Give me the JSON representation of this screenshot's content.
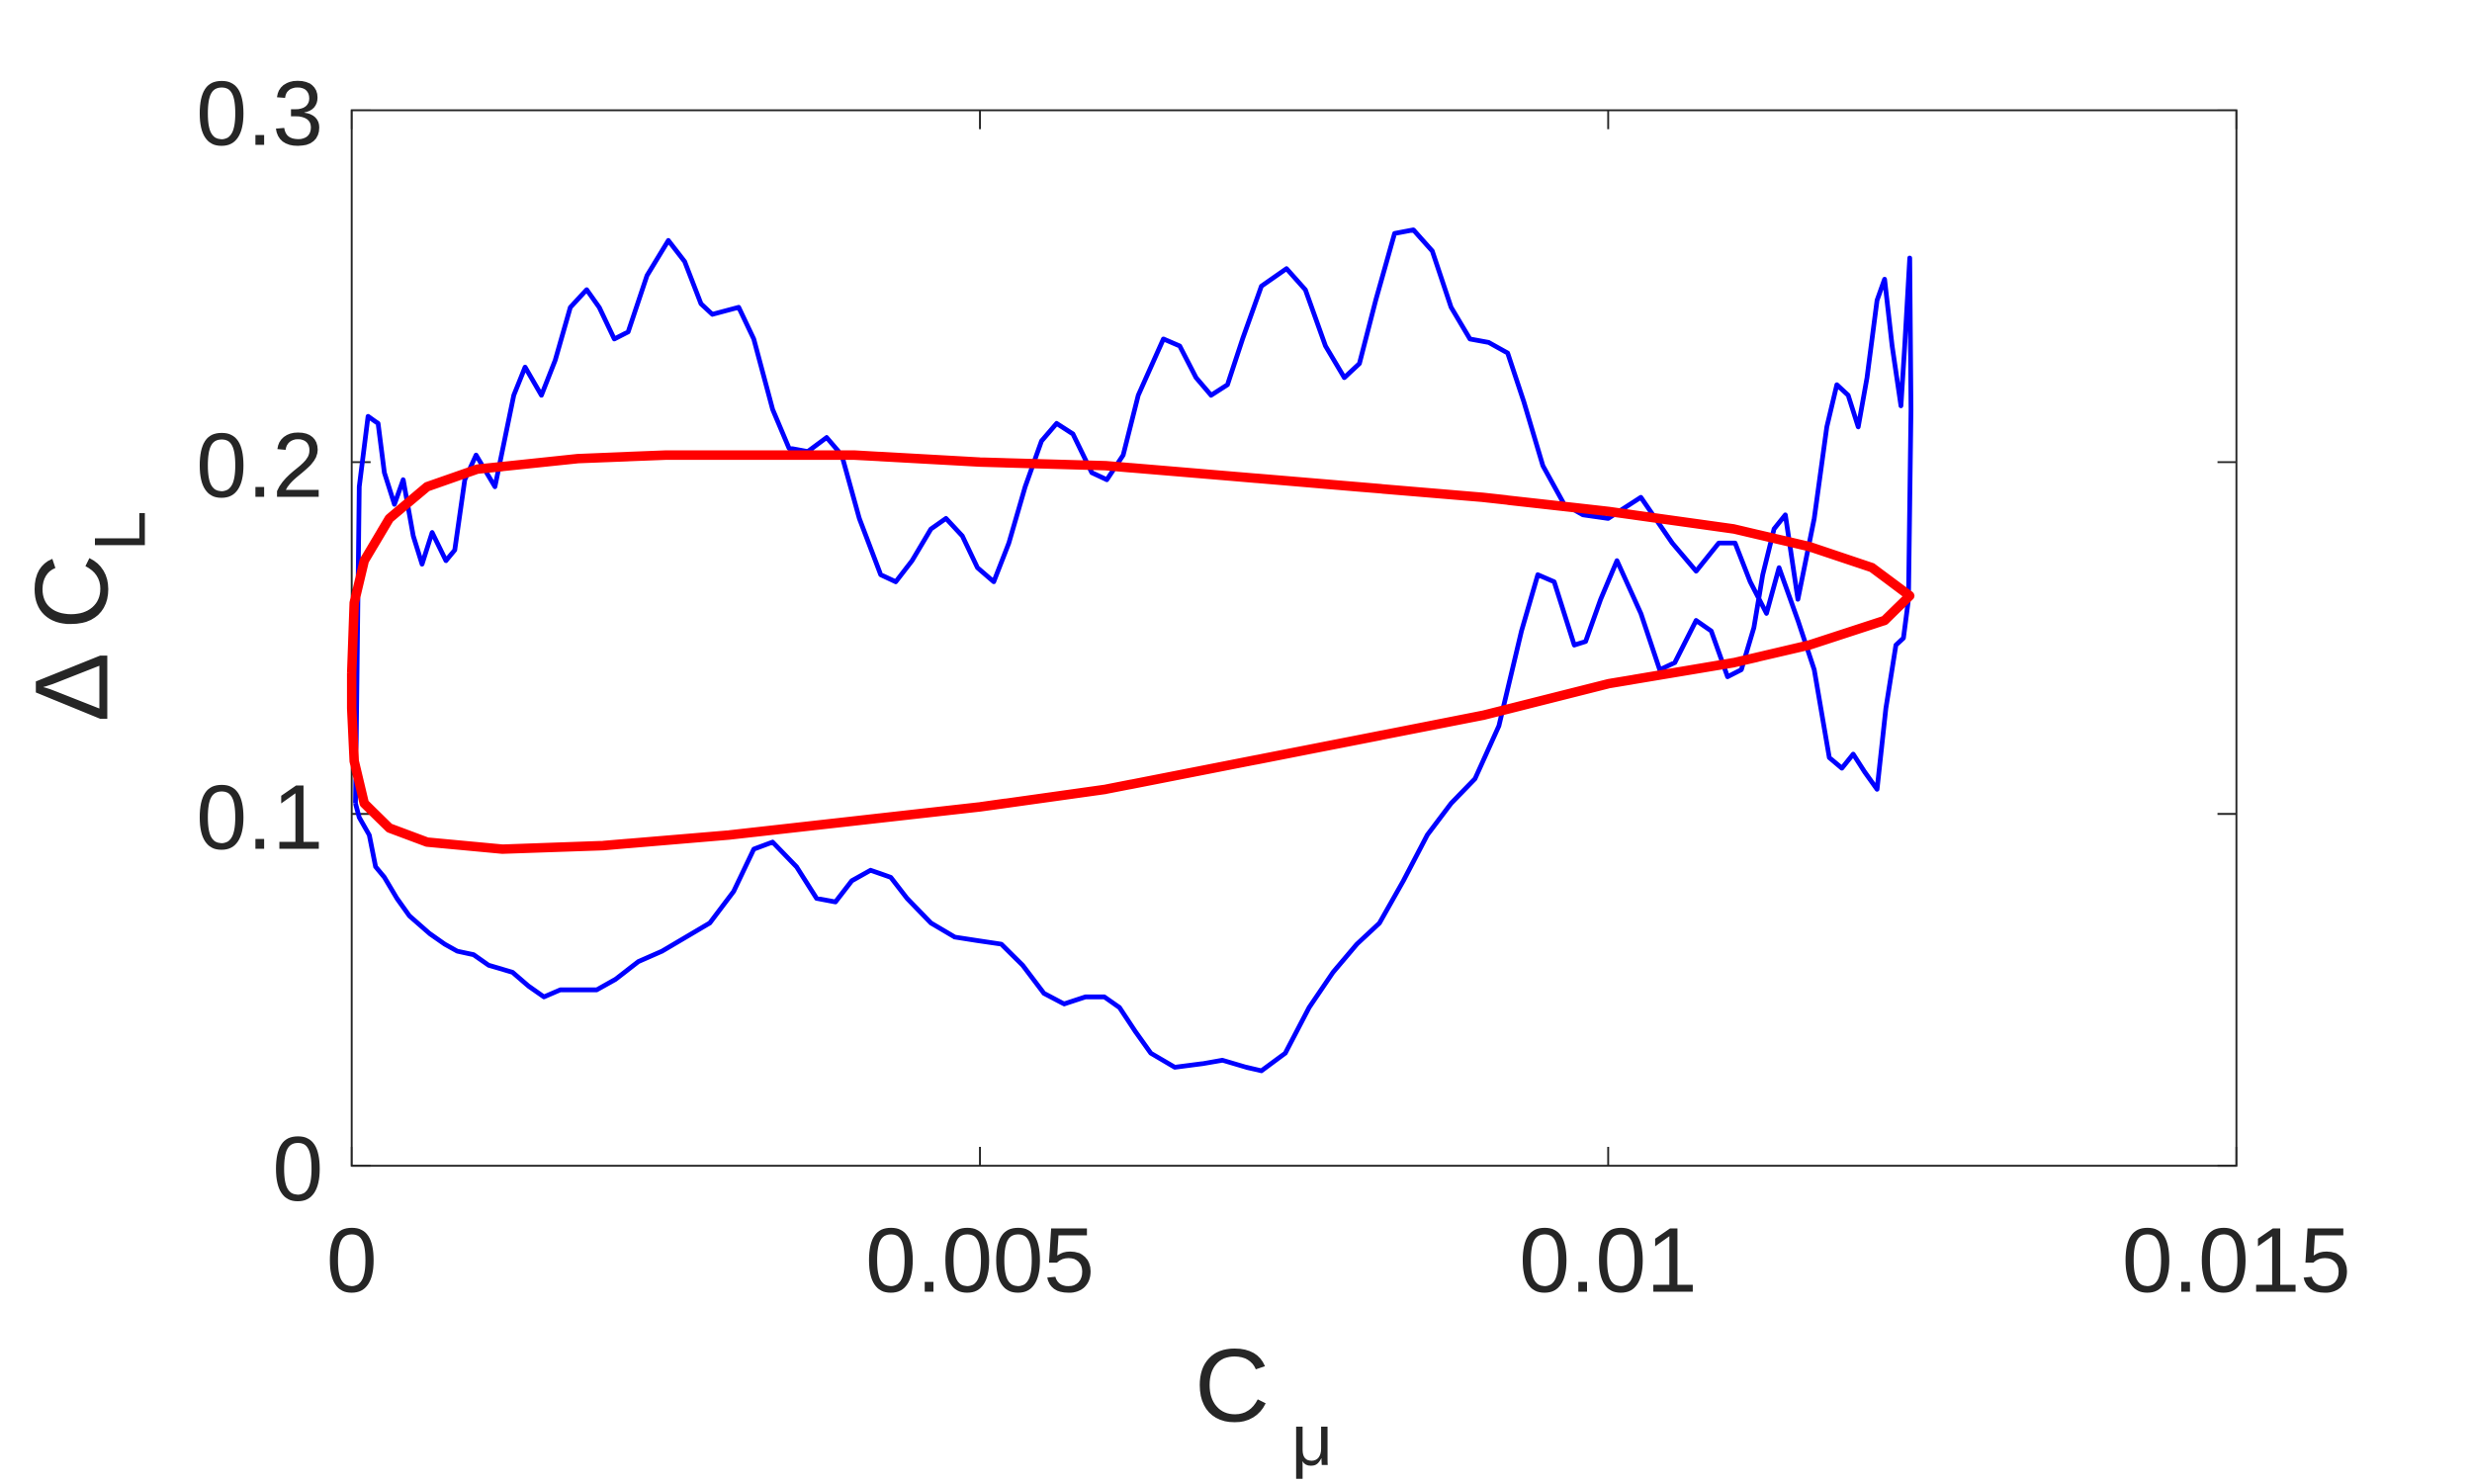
{
  "chart_data": {
    "type": "line",
    "xlabel": "C",
    "xlabel_sub": "μ",
    "ylabel": "Δ C",
    "ylabel_sub": "L",
    "xlim": [
      0,
      0.015
    ],
    "xticks": [
      0,
      0.005,
      0.01,
      0.015
    ],
    "ylim": [
      0,
      0.3
    ],
    "yticks": [
      0,
      0.1,
      0.2,
      0.3
    ],
    "grid": false,
    "series": [
      {
        "name": "blue",
        "color": "#0000ff",
        "width": 3,
        "x": [
          3e-05,
          6e-05,
          0.00013,
          0.00021,
          0.00026,
          0.00034,
          0.00041,
          0.00049,
          0.00056,
          0.00064,
          0.00075,
          0.00082,
          0.0009,
          0.00099,
          0.00114,
          0.00129,
          0.00138,
          0.00151,
          0.00162,
          0.00174,
          0.00187,
          0.00197,
          0.00209,
          0.0022,
          0.00235,
          0.00252,
          0.00265,
          0.00278,
          0.00287,
          0.00308,
          0.0032,
          0.00335,
          0.00348,
          0.00363,
          0.00378,
          0.0039,
          0.00404,
          0.00421,
          0.00433,
          0.00446,
          0.00461,
          0.00473,
          0.00486,
          0.00498,
          0.00511,
          0.00523,
          0.00536,
          0.00549,
          0.00561,
          0.00574,
          0.00589,
          0.00601,
          0.00614,
          0.00626,
          0.00646,
          0.00659,
          0.00672,
          0.00684,
          0.00697,
          0.00709,
          0.00724,
          0.00744,
          0.00759,
          0.00775,
          0.0079,
          0.00802,
          0.00815,
          0.0083,
          0.00845,
          0.0086,
          0.00875,
          0.0089,
          0.00905,
          0.0092,
          0.00933,
          0.00948,
          0.00965,
          0.0098,
          0.01,
          0.01026,
          0.01051,
          0.0107,
          0.01088,
          0.01101,
          0.01113,
          0.01126,
          0.01136,
          0.01151,
          0.01164,
          0.01176,
          0.01186,
          0.01195,
          0.01204,
          0.01214,
          0.01221,
          0.01229,
          0.01235,
          0.01239,
          0.01241,
          0.0124,
          0.01236,
          0.01233,
          0.01226,
          0.0122,
          0.01214,
          0.01206,
          0.01199,
          0.01191,
          0.01182,
          0.01174,
          0.01164,
          0.01151,
          0.01141,
          0.01132,
          0.01123,
          0.01116,
          0.01106,
          0.01095,
          0.01082,
          0.0107,
          0.01053,
          0.01041,
          0.01026,
          0.01007,
          0.00994,
          0.00982,
          0.00973,
          0.00957,
          0.00944,
          0.00931,
          0.00913,
          0.00894,
          0.00875,
          0.00856,
          0.00837,
          0.00818,
          0.008,
          0.00781,
          0.00762,
          0.00743,
          0.00724,
          0.00712,
          0.00693,
          0.00677,
          0.00655,
          0.00636,
          0.00624,
          0.00611,
          0.00599,
          0.00584,
          0.00567,
          0.00551,
          0.00534,
          0.00517,
          0.00498,
          0.0048,
          0.00461,
          0.00442,
          0.00429,
          0.00413,
          0.00398,
          0.00385,
          0.0037,
          0.00354,
          0.00335,
          0.0032,
          0.00304,
          0.00285,
          0.00266,
          0.00247,
          0.00228,
          0.0021,
          0.00195,
          0.00166,
          0.00153,
          0.00141,
          0.00128,
          0.00109,
          0.00097,
          0.00084,
          0.00074,
          0.00062,
          0.00046,
          0.00036,
          0.00026,
          0.00019,
          0.00014,
          6e-05,
          3e-05
        ],
        "values": [
          0.103,
          0.193,
          0.213,
          0.211,
          0.197,
          0.188,
          0.195,
          0.179,
          0.171,
          0.18,
          0.172,
          0.175,
          0.195,
          0.202,
          0.193,
          0.219,
          0.227,
          0.219,
          0.229,
          0.244,
          0.249,
          0.244,
          0.235,
          0.237,
          0.253,
          0.263,
          0.257,
          0.245,
          0.242,
          0.244,
          0.235,
          0.215,
          0.204,
          0.203,
          0.207,
          0.202,
          0.184,
          0.168,
          0.166,
          0.172,
          0.181,
          0.184,
          0.179,
          0.17,
          0.166,
          0.177,
          0.193,
          0.206,
          0.211,
          0.208,
          0.197,
          0.195,
          0.202,
          0.219,
          0.235,
          0.233,
          0.224,
          0.219,
          0.222,
          0.235,
          0.25,
          0.255,
          0.249,
          0.233,
          0.224,
          0.228,
          0.246,
          0.265,
          0.266,
          0.26,
          0.244,
          0.235,
          0.234,
          0.231,
          0.217,
          0.199,
          0.188,
          0.185,
          0.184,
          0.19,
          0.177,
          0.169,
          0.177,
          0.177,
          0.166,
          0.157,
          0.17,
          0.155,
          0.141,
          0.116,
          0.113,
          0.117,
          0.112,
          0.107,
          0.13,
          0.148,
          0.15,
          0.161,
          0.215,
          0.258,
          0.233,
          0.216,
          0.233,
          0.252,
          0.246,
          0.224,
          0.21,
          0.219,
          0.222,
          0.21,
          0.184,
          0.161,
          0.185,
          0.181,
          0.168,
          0.153,
          0.141,
          0.139,
          0.152,
          0.155,
          0.143,
          0.141,
          0.157,
          0.172,
          0.161,
          0.149,
          0.148,
          0.166,
          0.168,
          0.152,
          0.125,
          0.11,
          0.103,
          0.094,
          0.081,
          0.069,
          0.063,
          0.055,
          0.045,
          0.032,
          0.027,
          0.028,
          0.03,
          0.029,
          0.028,
          0.032,
          0.038,
          0.045,
          0.048,
          0.048,
          0.046,
          0.049,
          0.057,
          0.063,
          0.064,
          0.065,
          0.069,
          0.076,
          0.082,
          0.084,
          0.081,
          0.075,
          0.076,
          0.085,
          0.092,
          0.09,
          0.078,
          0.069,
          0.065,
          0.061,
          0.058,
          0.053,
          0.05,
          0.05,
          0.048,
          0.051,
          0.055,
          0.057,
          0.06,
          0.061,
          0.063,
          0.066,
          0.071,
          0.076,
          0.082,
          0.085,
          0.094,
          0.099,
          0.103
        ]
      },
      {
        "name": "red",
        "color": "#ff0000",
        "width": 6,
        "x": [
          0,
          2e-05,
          0.0001,
          0.0003,
          0.0006,
          0.001,
          0.0018,
          0.0025,
          0.004,
          0.005,
          0.006,
          0.007,
          0.008,
          0.009,
          0.01,
          0.011,
          0.0116,
          0.0121,
          0.0124,
          0.0122,
          0.0116,
          0.011,
          0.01,
          0.009,
          0.008,
          0.007,
          0.006,
          0.005,
          0.004,
          0.003,
          0.002,
          0.0012,
          0.0006,
          0.0003,
          0.0001,
          2e-05,
          0,
          0
        ],
        "values": [
          0.14,
          0.16,
          0.172,
          0.184,
          0.193,
          0.198,
          0.201,
          0.202,
          0.202,
          0.2,
          0.199,
          0.196,
          0.193,
          0.19,
          0.186,
          0.181,
          0.176,
          0.17,
          0.162,
          0.155,
          0.148,
          0.143,
          0.137,
          0.128,
          0.121,
          0.114,
          0.107,
          0.102,
          0.098,
          0.094,
          0.091,
          0.09,
          0.092,
          0.096,
          0.103,
          0.115,
          0.13,
          0.14
        ]
      }
    ]
  }
}
